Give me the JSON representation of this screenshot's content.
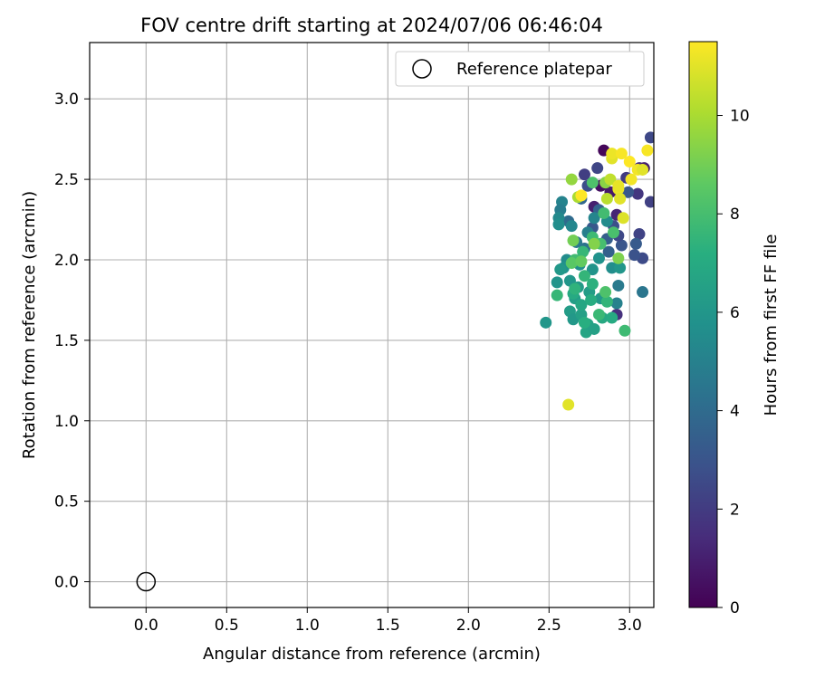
{
  "chart_data": {
    "type": "scatter",
    "title": "FOV centre drift starting at 2024/07/06 06:46:04",
    "xlabel": "Angular distance from reference (arcmin)",
    "ylabel": "Rotation from reference (arcmin)",
    "xlim": [
      -0.35,
      3.15
    ],
    "ylim": [
      -0.16,
      3.35
    ],
    "xticks": [
      "0.0",
      "0.5",
      "1.0",
      "1.5",
      "2.0",
      "2.5",
      "3.0"
    ],
    "yticks": [
      "0.0",
      "0.5",
      "1.0",
      "1.5",
      "2.0",
      "2.5",
      "3.0"
    ],
    "grid": true,
    "legend": {
      "placement": "top-right",
      "entries": [
        "Reference platepar"
      ]
    },
    "reference": {
      "x": 0.0,
      "y": 0.0,
      "label": "Reference platepar"
    },
    "colorbar": {
      "label": "Hours from first FF file",
      "range": [
        0,
        11.5
      ],
      "ticks": [
        "0",
        "2",
        "4",
        "6",
        "8",
        "10"
      ],
      "colormap": "viridis"
    },
    "series": [
      {
        "color_values_hours": true,
        "points": [
          [
            2.84,
            2.68,
            0.2
          ],
          [
            2.82,
            2.46,
            0.5
          ],
          [
            2.88,
            2.42,
            0.8
          ],
          [
            2.78,
            2.33,
            1.0
          ],
          [
            2.92,
            2.28,
            1.2
          ],
          [
            3.06,
            2.57,
            1.5
          ],
          [
            3.09,
            2.57,
            1.0
          ],
          [
            3.05,
            2.41,
            1.8
          ],
          [
            3.13,
            2.36,
            2.2
          ],
          [
            3.13,
            2.76,
            2.5
          ],
          [
            3.08,
            2.01,
            2.6
          ],
          [
            3.06,
            2.16,
            2.3
          ],
          [
            3.03,
            2.03,
            2.9
          ],
          [
            2.72,
            2.53,
            2.1
          ],
          [
            2.74,
            2.46,
            2.7
          ],
          [
            2.8,
            2.57,
            2.4
          ],
          [
            2.98,
            2.51,
            2.0
          ],
          [
            2.99,
            2.42,
            3.1
          ],
          [
            2.9,
            2.21,
            2.8
          ],
          [
            2.95,
            2.09,
            3.0
          ],
          [
            2.93,
            2.15,
            2.5
          ],
          [
            3.04,
            2.1,
            3.3
          ],
          [
            2.86,
            2.13,
            3.4
          ],
          [
            2.81,
            2.31,
            3.6
          ],
          [
            2.77,
            2.2,
            3.2
          ],
          [
            2.87,
            2.05,
            3.5
          ],
          [
            2.92,
            1.66,
            1.6
          ],
          [
            2.7,
            2.38,
            3.8
          ],
          [
            2.62,
            2.24,
            4.0
          ],
          [
            2.72,
            2.07,
            4.3
          ],
          [
            2.67,
            2.11,
            4.6
          ],
          [
            2.74,
            2.17,
            4.9
          ],
          [
            3.08,
            1.8,
            4.5
          ],
          [
            2.93,
            1.84,
            4.7
          ],
          [
            2.92,
            1.73,
            5.0
          ],
          [
            2.58,
            2.36,
            5.1
          ],
          [
            2.57,
            2.31,
            4.8
          ],
          [
            2.56,
            2.26,
            5.4
          ],
          [
            2.56,
            2.22,
            5.6
          ],
          [
            2.64,
            2.21,
            5.3
          ],
          [
            2.78,
            2.26,
            5.2
          ],
          [
            2.86,
            2.24,
            5.5
          ],
          [
            2.81,
            2.01,
            5.8
          ],
          [
            2.89,
            1.95,
            5.6
          ],
          [
            2.94,
            1.95,
            6.0
          ],
          [
            2.77,
            1.94,
            5.9
          ],
          [
            2.69,
            1.97,
            5.7
          ],
          [
            2.61,
            2.0,
            5.5
          ],
          [
            2.59,
            1.95,
            5.8
          ],
          [
            2.57,
            1.94,
            6.1
          ],
          [
            2.63,
            1.87,
            6.0
          ],
          [
            2.55,
            1.86,
            5.9
          ],
          [
            2.68,
            1.83,
            6.2
          ],
          [
            2.75,
            1.8,
            6.3
          ],
          [
            2.82,
            1.76,
            6.1
          ],
          [
            2.66,
            1.76,
            6.4
          ],
          [
            2.63,
            1.68,
            6.3
          ],
          [
            2.65,
            1.63,
            6.1
          ],
          [
            2.7,
            1.66,
            6.5
          ],
          [
            2.73,
            1.55,
            6.7
          ],
          [
            2.74,
            1.6,
            6.6
          ],
          [
            2.78,
            1.57,
            6.5
          ],
          [
            2.83,
            1.64,
            6.9
          ],
          [
            2.89,
            1.64,
            7.0
          ],
          [
            2.48,
            1.61,
            6.0
          ],
          [
            2.7,
            1.72,
            6.8
          ],
          [
            2.72,
            1.61,
            7.2
          ],
          [
            2.76,
            1.75,
            7.1
          ],
          [
            2.65,
            1.79,
            7.0
          ],
          [
            2.55,
            1.78,
            7.6
          ],
          [
            2.66,
            1.82,
            7.4
          ],
          [
            2.72,
            1.9,
            7.5
          ],
          [
            2.77,
            1.85,
            7.3
          ],
          [
            2.81,
            1.66,
            7.7
          ],
          [
            2.86,
            1.74,
            7.5
          ],
          [
            2.97,
            1.56,
            7.8
          ],
          [
            2.66,
            2.0,
            7.9
          ],
          [
            2.71,
            2.05,
            7.6
          ],
          [
            2.77,
            2.14,
            7.8
          ],
          [
            2.82,
            2.1,
            8.0
          ],
          [
            2.9,
            2.17,
            8.1
          ],
          [
            2.84,
            2.29,
            7.9
          ],
          [
            2.77,
            2.48,
            8.2
          ],
          [
            2.85,
            1.8,
            8.2
          ],
          [
            2.64,
            1.98,
            8.5
          ],
          [
            2.7,
            1.99,
            8.7
          ],
          [
            2.65,
            2.12,
            9.0
          ],
          [
            2.78,
            2.1,
            9.3
          ],
          [
            2.93,
            2.01,
            9.2
          ],
          [
            2.85,
            2.48,
            9.4
          ],
          [
            2.64,
            2.5,
            9.6
          ],
          [
            2.68,
            2.39,
            10.0
          ],
          [
            2.86,
            2.38,
            10.3
          ],
          [
            2.88,
            2.5,
            10.4
          ],
          [
            2.62,
            1.1,
            11.0
          ],
          [
            2.89,
            2.63,
            11.0
          ],
          [
            2.89,
            2.66,
            11.2
          ],
          [
            2.95,
            2.66,
            11.4
          ],
          [
            3.0,
            2.61,
            11.5
          ],
          [
            3.05,
            2.56,
            11.3
          ],
          [
            3.08,
            2.56,
            11.0
          ],
          [
            3.11,
            2.68,
            11.4
          ],
          [
            2.93,
            2.44,
            11.2
          ],
          [
            2.94,
            2.38,
            11.0
          ],
          [
            2.96,
            2.26,
            10.9
          ],
          [
            3.01,
            2.5,
            11.3
          ],
          [
            2.7,
            2.4,
            11.5
          ],
          [
            2.93,
            2.46,
            11.1
          ]
        ]
      }
    ]
  }
}
